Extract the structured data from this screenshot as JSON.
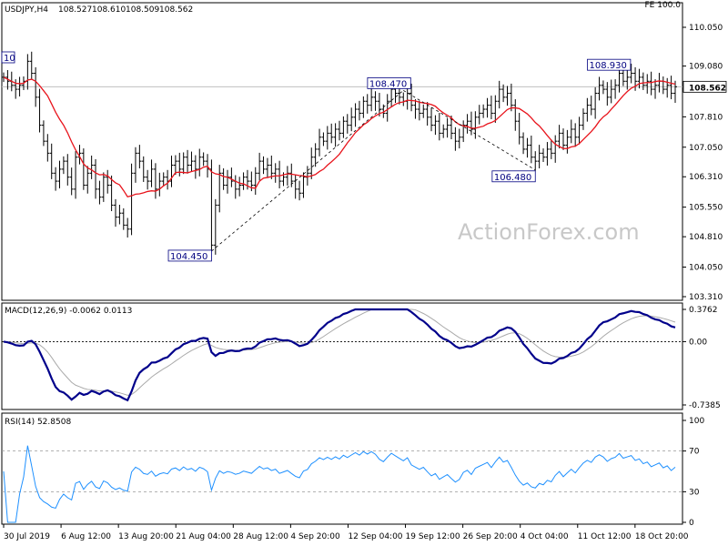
{
  "chart_data": {
    "type": "line",
    "symbol": "USDJPY",
    "timeframe": "H4",
    "header": {
      "title": "USDJPY,H4",
      "ohlc": [
        "108.527",
        "108.610",
        "108.509",
        "108.562"
      ],
      "corner_label": "FE 100.0"
    },
    "watermark": "ActionForex.com",
    "last_price": 108.562,
    "last_price_label": "108.562",
    "x_ticks": [
      "30 Jul 2019",
      "6 Aug 12:00",
      "13 Aug 20:00",
      "21 Aug 04:00",
      "28 Aug 12:00",
      "4 Sep 20:00",
      "12 Sep 04:00",
      "19 Sep 12:00",
      "26 Sep 20:00",
      "4 Oct 04:00",
      "11 Oct 12:00",
      "18 Oct 20:00"
    ],
    "price_panel": {
      "ylim": [
        103.31,
        110.05
      ],
      "y_ticks": [
        "110.050",
        "109.080",
        "108.562",
        "107.810",
        "107.050",
        "106.310",
        "105.550",
        "104.810",
        "104.050",
        "103.310"
      ],
      "annotations": [
        {
          "text": "104.450",
          "index": 52,
          "price": 104.45
        },
        {
          "text": "108.470",
          "index": 100,
          "price": 108.47
        },
        {
          "text": "106.480",
          "index": 133,
          "price": 106.48
        },
        {
          "text": "108.930",
          "index": 155,
          "price": 108.93
        },
        {
          "text": "10",
          "index": 0,
          "price": 109.0
        }
      ],
      "close": [
        108.8,
        108.7,
        108.6,
        108.5,
        108.6,
        108.7,
        109.2,
        108.9,
        108.3,
        107.6,
        107.2,
        106.9,
        106.4,
        106.2,
        106.5,
        106.7,
        106.3,
        106.0,
        106.8,
        106.9,
        106.1,
        106.4,
        106.6,
        106.0,
        105.8,
        106.3,
        106.1,
        105.6,
        105.3,
        105.4,
        105.1,
        105.0,
        106.4,
        106.9,
        106.7,
        106.3,
        106.2,
        106.5,
        106.0,
        106.2,
        106.3,
        106.2,
        106.6,
        106.7,
        106.5,
        106.8,
        106.6,
        106.7,
        106.5,
        106.8,
        106.7,
        106.5,
        104.6,
        105.6,
        106.4,
        106.1,
        106.3,
        106.2,
        106.0,
        106.1,
        106.3,
        106.2,
        106.1,
        106.4,
        106.7,
        106.5,
        106.6,
        106.4,
        106.5,
        106.2,
        106.3,
        106.4,
        106.2,
        106.0,
        105.9,
        106.3,
        106.4,
        106.8,
        107.0,
        107.3,
        107.2,
        107.4,
        107.3,
        107.5,
        107.4,
        107.7,
        107.6,
        107.8,
        108.0,
        107.9,
        108.2,
        108.1,
        108.3,
        108.2,
        108.0,
        107.9,
        108.2,
        108.5,
        108.4,
        108.3,
        108.2,
        108.4,
        108.1,
        108.0,
        107.9,
        108.0,
        107.8,
        107.6,
        107.7,
        107.4,
        107.5,
        107.6,
        107.4,
        107.2,
        107.3,
        107.6,
        107.7,
        107.5,
        107.8,
        107.9,
        108.0,
        108.1,
        107.9,
        108.2,
        108.5,
        108.3,
        108.4,
        108.1,
        107.7,
        107.3,
        107.0,
        107.1,
        106.8,
        106.7,
        106.9,
        106.8,
        107.0,
        106.9,
        107.2,
        107.4,
        107.1,
        107.3,
        107.5,
        107.3,
        107.6,
        107.9,
        108.1,
        108.0,
        108.4,
        108.6,
        108.5,
        108.3,
        108.5,
        108.6,
        108.9,
        108.7,
        108.8,
        108.9,
        108.7,
        108.8,
        108.6,
        108.7,
        108.5,
        108.6,
        108.7,
        108.5,
        108.6,
        108.4,
        108.562
      ],
      "series": [
        {
          "name": "",
          "key": "close",
          "color": "#000000"
        },
        {
          "name": "",
          "key": "ma",
          "color": "#e8141c"
        }
      ]
    },
    "macd_panel": {
      "label": "MACD(12,26,9) -0.0062 0.0113",
      "ylim": [
        -0.7385,
        0.3762
      ],
      "y_ticks": [
        "0.3762",
        "0.00",
        "-0.7385"
      ],
      "series": [
        {
          "name": "",
          "key": "macd",
          "color": "#00008b"
        },
        {
          "name": "",
          "key": "signal",
          "color": "#aaaaaa"
        }
      ]
    },
    "rsi_panel": {
      "label": "RSI(14) 52.8508",
      "ylim": [
        0,
        100
      ],
      "y_ticks": [
        "100",
        "70",
        "30",
        "0"
      ],
      "levels": [
        70,
        30
      ],
      "series": [
        {
          "name": "",
          "key": "rsi",
          "color": "#1e90ff"
        }
      ]
    }
  }
}
